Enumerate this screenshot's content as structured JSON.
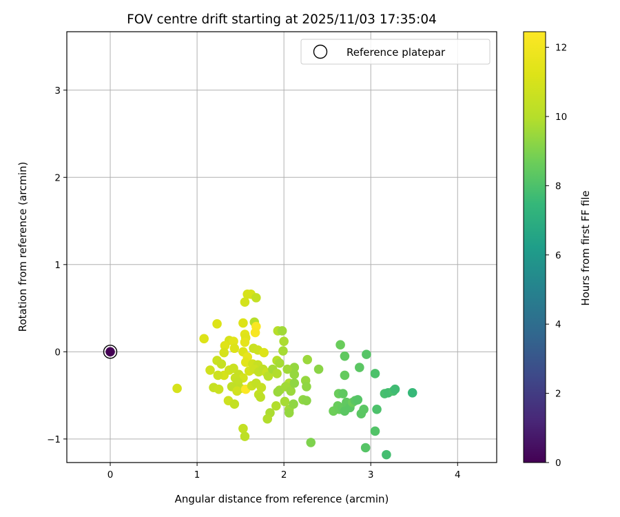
{
  "chart_data": {
    "type": "scatter",
    "title": "FOV centre drift starting at 2025/11/03 17:35:04",
    "xlabel": "Angular distance from reference (arcmin)",
    "ylabel": "Rotation from reference (arcmin)",
    "xlim": [
      -0.5,
      4.45
    ],
    "ylim": [
      -1.27,
      3.67
    ],
    "xticks": [
      0,
      1,
      2,
      3,
      4
    ],
    "yticks": [
      -1,
      0,
      1,
      2,
      3
    ],
    "xtick_labels": [
      "0",
      "1",
      "2",
      "3",
      "4"
    ],
    "ytick_labels": [
      "−1",
      "0",
      "1",
      "2",
      "3"
    ],
    "grid": true,
    "colormap": "viridis",
    "colorbar": {
      "label": "Hours from first FF file",
      "range": [
        0,
        12.45
      ],
      "ticks": [
        0,
        2,
        4,
        6,
        8,
        10,
        12
      ],
      "tick_labels": [
        "0",
        "2",
        "4",
        "6",
        "8",
        "10",
        "12"
      ]
    },
    "legend": {
      "position": "top-right",
      "entries": [
        {
          "label": "Reference platepar",
          "marker": "open-circle"
        }
      ]
    },
    "reference_point": {
      "x": 0,
      "y": 0,
      "hours": 0
    },
    "series": [
      {
        "name": "FF files",
        "points": [
          [
            1.62,
            0.66,
            11.0
          ],
          [
            1.58,
            0.66,
            11.0
          ],
          [
            1.68,
            0.62,
            10.4
          ],
          [
            1.55,
            0.57,
            10.9
          ],
          [
            1.66,
            0.34,
            10.0
          ],
          [
            1.53,
            0.33,
            11.2
          ],
          [
            1.68,
            0.29,
            12.3
          ],
          [
            1.23,
            0.32,
            11.2
          ],
          [
            1.67,
            0.22,
            12.2
          ],
          [
            1.55,
            0.2,
            11.4
          ],
          [
            1.93,
            0.24,
            10.0
          ],
          [
            1.98,
            0.24,
            9.6
          ],
          [
            1.08,
            0.15,
            11.2
          ],
          [
            1.56,
            0.16,
            11.3
          ],
          [
            1.37,
            0.13,
            11.0
          ],
          [
            1.42,
            0.12,
            11.4
          ],
          [
            1.32,
            0.07,
            11.3
          ],
          [
            1.55,
            0.11,
            11.5
          ],
          [
            2.0,
            0.12,
            9.8
          ],
          [
            1.43,
            0.04,
            11.2
          ],
          [
            1.65,
            0.04,
            10.6
          ],
          [
            1.7,
            0.02,
            10.7
          ],
          [
            1.77,
            -0.01,
            11.2
          ],
          [
            1.31,
            -0.01,
            11.0
          ],
          [
            1.53,
            0.0,
            11.2
          ],
          [
            1.58,
            -0.06,
            11.6
          ],
          [
            1.99,
            0.01,
            9.7
          ],
          [
            1.23,
            -0.1,
            10.6
          ],
          [
            1.28,
            -0.14,
            10.5
          ],
          [
            1.56,
            -0.12,
            11.4
          ],
          [
            1.64,
            -0.14,
            10.8
          ],
          [
            1.7,
            -0.15,
            10.5
          ],
          [
            1.92,
            -0.1,
            10.0
          ],
          [
            1.95,
            -0.13,
            9.7
          ],
          [
            2.27,
            -0.09,
            9.5
          ],
          [
            2.12,
            -0.18,
            9.4
          ],
          [
            2.4,
            -0.2,
            9.2
          ],
          [
            1.15,
            -0.21,
            10.8
          ],
          [
            1.31,
            -0.27,
            11.0
          ],
          [
            1.24,
            -0.27,
            10.7
          ],
          [
            1.37,
            -0.21,
            10.8
          ],
          [
            1.42,
            -0.19,
            10.6
          ],
          [
            1.48,
            -0.26,
            10.5
          ],
          [
            1.53,
            -0.3,
            10.9
          ],
          [
            1.6,
            -0.22,
            11.0
          ],
          [
            1.66,
            -0.2,
            10.7
          ],
          [
            1.71,
            -0.23,
            10.4
          ],
          [
            1.76,
            -0.2,
            10.3
          ],
          [
            1.8,
            -0.24,
            10.6
          ],
          [
            1.82,
            -0.28,
            10.1
          ],
          [
            1.87,
            -0.2,
            9.7
          ],
          [
            1.92,
            -0.25,
            9.9
          ],
          [
            2.04,
            -0.2,
            9.6
          ],
          [
            2.12,
            -0.26,
            9.4
          ],
          [
            2.25,
            -0.33,
            9.4
          ],
          [
            2.26,
            -0.4,
            9.3
          ],
          [
            2.06,
            -0.36,
            9.8
          ],
          [
            2.02,
            -0.4,
            9.6
          ],
          [
            2.08,
            -0.45,
            9.5
          ],
          [
            1.95,
            -0.44,
            9.6
          ],
          [
            1.93,
            -0.46,
            9.5
          ],
          [
            2.12,
            -0.36,
            9.3
          ],
          [
            1.44,
            -0.3,
            10.5
          ],
          [
            1.47,
            -0.35,
            10.4
          ],
          [
            1.4,
            -0.4,
            10.3
          ],
          [
            1.5,
            -0.42,
            10.3
          ],
          [
            1.46,
            -0.45,
            10.8
          ],
          [
            1.56,
            -0.43,
            12.4
          ],
          [
            1.63,
            -0.39,
            10.6
          ],
          [
            1.68,
            -0.36,
            10.4
          ],
          [
            1.74,
            -0.41,
            10.5
          ],
          [
            1.71,
            -0.49,
            10.4
          ],
          [
            1.73,
            -0.52,
            10.2
          ],
          [
            1.19,
            -0.41,
            10.5
          ],
          [
            1.25,
            -0.43,
            10.6
          ],
          [
            0.77,
            -0.42,
            11.0
          ],
          [
            1.36,
            -0.56,
            10.7
          ],
          [
            1.43,
            -0.6,
            10.4
          ],
          [
            1.91,
            -0.62,
            9.9
          ],
          [
            2.01,
            -0.57,
            9.7
          ],
          [
            2.06,
            -0.66,
            9.6
          ],
          [
            2.06,
            -0.7,
            9.4
          ],
          [
            2.11,
            -0.6,
            9.3
          ],
          [
            2.22,
            -0.55,
            9.3
          ],
          [
            2.26,
            -0.56,
            9.2
          ],
          [
            1.84,
            -0.7,
            9.8
          ],
          [
            1.81,
            -0.77,
            9.9
          ],
          [
            1.53,
            -0.88,
            10.4
          ],
          [
            1.55,
            -0.97,
            10.2
          ],
          [
            2.31,
            -1.04,
            9.0
          ],
          [
            2.65,
            0.08,
            8.6
          ],
          [
            2.7,
            -0.05,
            8.4
          ],
          [
            2.95,
            -0.03,
            8.2
          ],
          [
            2.7,
            -0.27,
            8.5
          ],
          [
            2.87,
            -0.18,
            8.3
          ],
          [
            3.05,
            -0.25,
            8.0
          ],
          [
            2.63,
            -0.48,
            8.6
          ],
          [
            2.68,
            -0.48,
            8.4
          ],
          [
            2.57,
            -0.68,
            8.7
          ],
          [
            2.62,
            -0.62,
            8.6
          ],
          [
            2.64,
            -0.66,
            8.6
          ],
          [
            2.67,
            -0.64,
            8.5
          ],
          [
            2.7,
            -0.68,
            8.3
          ],
          [
            2.72,
            -0.58,
            8.4
          ],
          [
            2.76,
            -0.64,
            8.3
          ],
          [
            2.79,
            -0.58,
            8.6
          ],
          [
            2.82,
            -0.56,
            8.3
          ],
          [
            2.85,
            -0.55,
            8.2
          ],
          [
            2.89,
            -0.71,
            8.3
          ],
          [
            2.92,
            -0.66,
            8.3
          ],
          [
            3.07,
            -0.66,
            8.0
          ],
          [
            3.16,
            -0.48,
            7.9
          ],
          [
            3.2,
            -0.47,
            7.8
          ],
          [
            3.26,
            -0.45,
            7.9
          ],
          [
            3.28,
            -0.43,
            7.7
          ],
          [
            3.48,
            -0.47,
            7.5
          ],
          [
            3.05,
            -0.91,
            8.1
          ],
          [
            2.94,
            -1.1,
            8.2
          ],
          [
            3.18,
            -1.18,
            7.8
          ]
        ]
      }
    ]
  }
}
